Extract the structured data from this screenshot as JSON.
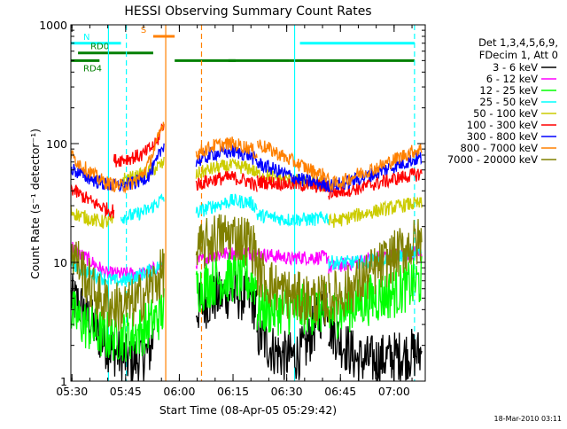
{
  "chart_data": {
    "type": "line",
    "title": "HESSI Observing Summary Count Rates",
    "xlabel": "Start Time (08-Apr-05 05:29:42)",
    "ylabel": "Count Rate (s⁻¹ detector⁻¹)",
    "yscale": "log",
    "ylim": [
      1,
      1000
    ],
    "xlim_minutes": [
      0,
      99
    ],
    "x_ticks": [
      "05:30",
      "05:45",
      "06:00",
      "06:15",
      "06:30",
      "06:45",
      "07:00"
    ],
    "y_ticks": [
      "1",
      "10",
      "100",
      "1000"
    ],
    "footer_date": "18-Mar-2010 03:11",
    "legend": {
      "header": [
        "Det 1,3,4,5,6,9,",
        "FDecim 1, Att 0"
      ],
      "entries": [
        {
          "label": "3 - 6 keV",
          "color": "#000000"
        },
        {
          "label": "6 - 12 keV",
          "color": "#ff00ff"
        },
        {
          "label": "12 - 25 keV",
          "color": "#00ff00"
        },
        {
          "label": "25 - 50 keV",
          "color": "#00ffff"
        },
        {
          "label": "50 - 100 keV",
          "color": "#cccc00"
        },
        {
          "label": "100 - 300 keV",
          "color": "#ff0000"
        },
        {
          "label": "300 - 800 keV",
          "color": "#0000ff"
        },
        {
          "label": "800 - 7000 keV",
          "color": "#ff8000"
        },
        {
          "label": "7000 - 20000 keV",
          "color": "#808000"
        }
      ]
    },
    "flags": [
      {
        "label": "N",
        "color": "#00ffff",
        "level": 700,
        "segments": [
          [
            0,
            14
          ],
          [
            64,
            96
          ]
        ]
      },
      {
        "label": "S",
        "color": "#ff8000",
        "level": 800,
        "segments": [
          [
            23,
            29
          ]
        ]
      },
      {
        "label": "RD0",
        "color": "#008000",
        "level": 580,
        "segments": [
          [
            2,
            23
          ]
        ]
      },
      {
        "label": "RD4",
        "color": "#008000",
        "level": 500,
        "segments": [
          [
            0,
            8
          ],
          [
            29,
            46
          ],
          [
            44,
            61
          ],
          [
            61,
            96
          ]
        ]
      }
    ],
    "vertical_lines": [
      {
        "minute": 10.5,
        "color": "#00ffff",
        "style": "solid"
      },
      {
        "minute": 15.5,
        "color": "#00ffff",
        "style": "dashed"
      },
      {
        "minute": 26.5,
        "color": "#ff8000",
        "style": "solid"
      },
      {
        "minute": 36.5,
        "color": "#ff8000",
        "style": "dashed"
      },
      {
        "minute": 62.5,
        "color": "#00ffff",
        "style": "solid"
      },
      {
        "minute": 96,
        "color": "#00ffff",
        "style": "dashed"
      }
    ],
    "series": [
      {
        "name": "3 - 6 keV",
        "color": "#000000",
        "segments": [
          {
            "x": [
              0,
              2,
              4,
              6,
              8,
              10,
              12,
              14,
              16,
              18,
              20,
              22,
              23
            ],
            "y": [
              5,
              4.5,
              3.8,
              3,
              2.4,
              2,
              1.8,
              1.6,
              1.5,
              1.5,
              1.6,
              1.8,
              2.3
            ]
          },
          {
            "x": [
              35,
              40,
              45,
              50,
              52
            ],
            "y": [
              4,
              5,
              5.5,
              5,
              4
            ]
          },
          {
            "x": [
              52,
              55,
              58,
              60,
              62,
              64,
              66,
              68,
              70,
              72
            ],
            "y": [
              2.5,
              2,
              1.7,
              1.6,
              1.6,
              1.7,
              2,
              2.8,
              3.8,
              5
            ]
          },
          {
            "x": [
              72,
              75,
              80,
              85,
              90,
              95,
              98
            ],
            "y": [
              3,
              2.2,
              1.5,
              1.5,
              1.6,
              1.7,
              1.7
            ]
          }
        ]
      },
      {
        "name": "6 - 12 keV",
        "color": "#ff00ff",
        "segments": [
          {
            "x": [
              0,
              2,
              4,
              6,
              8,
              10,
              14,
              16,
              18,
              20,
              22,
              24,
              26
            ],
            "y": [
              14,
              12,
              11,
              10,
              9,
              8,
              8,
              8,
              8,
              8,
              8.5,
              9,
              9
            ]
          },
          {
            "x": [
              35,
              40,
              45,
              50,
              55,
              60,
              62
            ],
            "y": [
              10,
              11.5,
              12,
              12,
              11.5,
              11,
              10.5
            ]
          },
          {
            "x": [
              62,
              66,
              70,
              72
            ],
            "y": [
              11,
              11,
              11,
              11
            ]
          },
          {
            "x": [
              72,
              76,
              80,
              85,
              90,
              95,
              98
            ],
            "y": [
              9,
              9.5,
              10,
              11,
              11.5,
              12,
              12
            ]
          }
        ]
      },
      {
        "name": "12 - 25 keV",
        "color": "#00ff00",
        "segments": [
          {
            "x": [
              0,
              2,
              4,
              6,
              8,
              10,
              12,
              14,
              16,
              18,
              20,
              22,
              24,
              26
            ],
            "y": [
              3.8,
              3.3,
              3,
              2.7,
              2.5,
              2.4,
              2.4,
              2.4,
              2.4,
              2.5,
              2.7,
              3,
              3.4,
              4
            ]
          },
          {
            "x": [
              35,
              40,
              45,
              50,
              52
            ],
            "y": [
              6,
              7,
              7.5,
              7,
              6.5
            ]
          },
          {
            "x": [
              52,
              56,
              60,
              64,
              68,
              72
            ],
            "y": [
              4,
              4,
              4,
              4,
              4,
              4
            ]
          },
          {
            "x": [
              72,
              76,
              80,
              85,
              90,
              95,
              98
            ],
            "y": [
              3.5,
              4,
              4.5,
              5,
              5.5,
              6.5,
              7
            ]
          }
        ]
      },
      {
        "name": "25 - 50 keV",
        "color": "#00ffff",
        "segments": [
          {
            "x": [
              0,
              2,
              4,
              6,
              8,
              10,
              12,
              14,
              16,
              18,
              20,
              22,
              24,
              26
            ],
            "y": [
              10,
              9,
              8.5,
              8,
              7.5,
              7.2,
              7,
              7,
              7.2,
              7.5,
              8,
              8.5,
              9,
              10
            ]
          },
          {
            "x": [
              14,
              18,
              22,
              26
            ],
            "y": [
              24,
              25,
              28,
              35
            ]
          },
          {
            "x": [
              35,
              40,
              45,
              50,
              52
            ],
            "y": [
              26,
              30,
              33,
              32,
              29
            ]
          },
          {
            "x": [
              52,
              56,
              60,
              64,
              68,
              72
            ],
            "y": [
              25,
              24,
              23,
              23,
              23,
              24
            ]
          },
          {
            "x": [
              72,
              76,
              80,
              85,
              90,
              95,
              98
            ],
            "y": [
              10,
              10,
              10,
              10.5,
              11,
              12,
              12.5
            ]
          }
        ]
      },
      {
        "name": "50 - 100 keV",
        "color": "#cccc00",
        "segments": [
          {
            "x": [
              0,
              2,
              4,
              6,
              8,
              10,
              12
            ],
            "y": [
              27,
              25,
              24,
              23,
              22,
              22,
              22
            ]
          },
          {
            "x": [
              14,
              18,
              22,
              26
            ],
            "y": [
              50,
              52,
              58,
              68
            ]
          },
          {
            "x": [
              35,
              40,
              45,
              50,
              52
            ],
            "y": [
              55,
              62,
              65,
              62,
              56
            ]
          },
          {
            "x": [
              52,
              56,
              60,
              64,
              68,
              72
            ],
            "y": [
              55,
              53,
              50,
              48,
              46,
              44
            ]
          },
          {
            "x": [
              72,
              76,
              80,
              85,
              90,
              95,
              98
            ],
            "y": [
              22,
              23,
              25,
              27,
              29,
              31,
              31
            ]
          }
        ]
      },
      {
        "name": "100 - 300 keV",
        "color": "#ff0000",
        "segments": [
          {
            "x": [
              0,
              2,
              4,
              6,
              8,
              10,
              12
            ],
            "y": [
              42,
              38,
              35,
              32,
              30,
              28,
              27
            ]
          },
          {
            "x": [
              12,
              16,
              20,
              24,
              26
            ],
            "y": [
              72,
              75,
              80,
              100,
              150
            ]
          },
          {
            "x": [
              35,
              40,
              45,
              50,
              52
            ],
            "y": [
              45,
              50,
              52,
              48,
              42
            ]
          },
          {
            "x": [
              52,
              56,
              60,
              64,
              68,
              72
            ],
            "y": [
              48,
              47,
              46,
              45,
              44,
              43
            ]
          },
          {
            "x": [
              72,
              76,
              80,
              85,
              90,
              95,
              98
            ],
            "y": [
              38,
              40,
              42,
              46,
              50,
              54,
              56
            ]
          }
        ]
      },
      {
        "name": "300 - 800 keV",
        "color": "#0000ff",
        "segments": [
          {
            "x": [
              0,
              2,
              4,
              6,
              8,
              10,
              12,
              14,
              16,
              18,
              20,
              22,
              24,
              26
            ],
            "y": [
              62,
              57,
              53,
              50,
              47,
              45,
              44,
              44,
              45,
              47,
              50,
              55,
              70,
              100
            ]
          },
          {
            "x": [
              35,
              40,
              45,
              50,
              52
            ],
            "y": [
              70,
              82,
              86,
              80,
              70
            ]
          },
          {
            "x": [
              52,
              56,
              60,
              64,
              68,
              72
            ],
            "y": [
              68,
              62,
              55,
              50,
              47,
              45
            ]
          },
          {
            "x": [
              72,
              76,
              80,
              85,
              90,
              95,
              98
            ],
            "y": [
              44,
              46,
              50,
              56,
              64,
              72,
              76
            ]
          }
        ]
      },
      {
        "name": "800 - 7000 keV",
        "color": "#ff8000",
        "segments": [
          {
            "x": [
              0,
              2,
              4,
              6,
              8,
              10,
              12,
              14,
              16,
              18,
              20,
              22,
              24,
              26
            ],
            "y": [
              80,
              70,
              62,
              56,
              50,
              47,
              45,
              44,
              45,
              48,
              55,
              70,
              100,
              155
            ]
          },
          {
            "x": [
              35,
              40,
              45,
              50,
              52
            ],
            "y": [
              82,
              96,
              100,
              92,
              80
            ]
          },
          {
            "x": [
              52,
              56,
              60,
              64,
              68,
              72
            ],
            "y": [
              100,
              88,
              76,
              66,
              58,
              52
            ]
          },
          {
            "x": [
              72,
              76,
              80,
              85,
              90,
              95,
              98
            ],
            "y": [
              45,
              48,
              55,
              62,
              72,
              85,
              90
            ]
          }
        ]
      },
      {
        "name": "7000 - 20000 keV",
        "color": "#808000",
        "segments": [
          {
            "x": [
              0,
              2,
              4,
              6,
              8,
              10,
              12,
              14,
              16,
              18,
              20,
              22,
              24,
              26
            ],
            "y": [
              13,
              10,
              7.5,
              6,
              5,
              4.5,
              4.3,
              4.2,
              4.3,
              4.6,
              5.2,
              6,
              7,
              8.5
            ]
          },
          {
            "x": [
              35,
              40,
              45,
              50,
              52
            ],
            "y": [
              12,
              16,
              17,
              15,
              11
            ]
          },
          {
            "x": [
              52,
              56,
              60,
              64,
              68,
              72
            ],
            "y": [
              8.5,
              6.5,
              5.5,
              5,
              4.8,
              4.8
            ]
          },
          {
            "x": [
              72,
              76,
              80,
              85,
              90,
              95,
              98
            ],
            "y": [
              5,
              5.5,
              6.5,
              8.5,
              11,
              14,
              15
            ]
          }
        ]
      }
    ]
  }
}
